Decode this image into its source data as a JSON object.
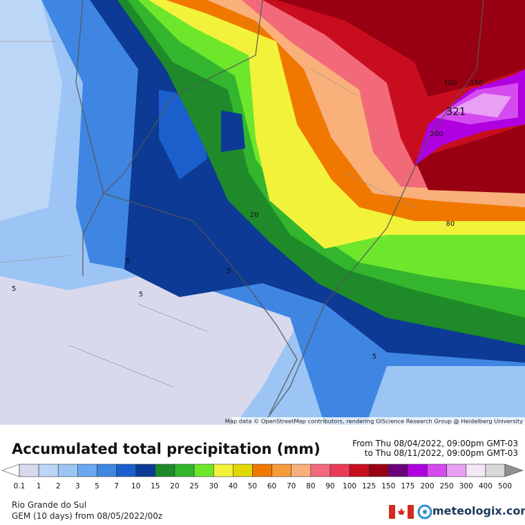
{
  "map": {
    "attribution": "Map data © OpenStreetMap contributors, rendering GIScience Research Group @ Heidelberg University",
    "contour_labels": [
      "321",
      "200",
      "100",
      "150",
      "80",
      "20",
      "5",
      "5",
      "5",
      "5",
      "5"
    ]
  },
  "header": {
    "title": "Accumulated total precipitation (mm)",
    "from": "From Thu 08/04/2022, 09:00pm GMT-03",
    "to": "to Thu 08/11/2022, 09:00pm GMT-03"
  },
  "legend": {
    "labels": [
      "0.1",
      "1",
      "2",
      "3",
      "5",
      "7",
      "10",
      "15",
      "20",
      "25",
      "30",
      "40",
      "50",
      "60",
      "70",
      "80",
      "90",
      "100",
      "125",
      "150",
      "175",
      "200",
      "250",
      "300",
      "400",
      "500"
    ],
    "colors": [
      "#ffffff",
      "#d9d9ee",
      "#bcd6f7",
      "#9cc5f5",
      "#6aa8ef",
      "#3f86e3",
      "#1a5fcc",
      "#0c3a94",
      "#1f8a2a",
      "#33b52e",
      "#6ee62c",
      "#f2f23a",
      "#e0d800",
      "#f07800",
      "#f79a3a",
      "#f9b07a",
      "#f26a7a",
      "#ec3a5a",
      "#c80e1e",
      "#990012",
      "#6a007a",
      "#b000e0",
      "#d44cf0",
      "#e8a0f5",
      "#f4e6f7",
      "#d8d8d8",
      "#909090"
    ]
  },
  "footer": {
    "region": "Rio Grande do Sul",
    "model": "GEM (10 days) from 08/05/2022/00z",
    "brand": "meteologix.com"
  }
}
